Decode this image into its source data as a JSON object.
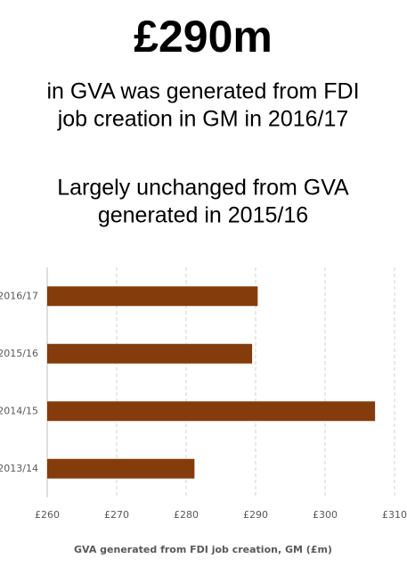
{
  "header": {
    "headline": "£290m",
    "lines": [
      "in GVA was generated from FDI",
      "job creation in GM in 2016/17"
    ],
    "note_lines": [
      "Largely unchanged from GVA",
      "generated in 2015/16"
    ]
  },
  "chart_data": {
    "type": "hbar",
    "categories": [
      "2016/17",
      "2015/16",
      "2014/15",
      "2013/14"
    ],
    "values": [
      290.3,
      289.5,
      307.2,
      281.2
    ],
    "color": "#843c0c",
    "xlim": [
      260,
      310
    ],
    "xticks": [
      {
        "value": 260,
        "label": "£260"
      },
      {
        "value": 270,
        "label": "£270"
      },
      {
        "value": 280,
        "label": "£280"
      },
      {
        "value": 290,
        "label": "£290"
      },
      {
        "value": 300,
        "label": "£300"
      },
      {
        "value": 310,
        "label": "£310"
      }
    ],
    "xlabel": "GVA generated from FDI job creation, GM (£m)",
    "grid": true
  }
}
